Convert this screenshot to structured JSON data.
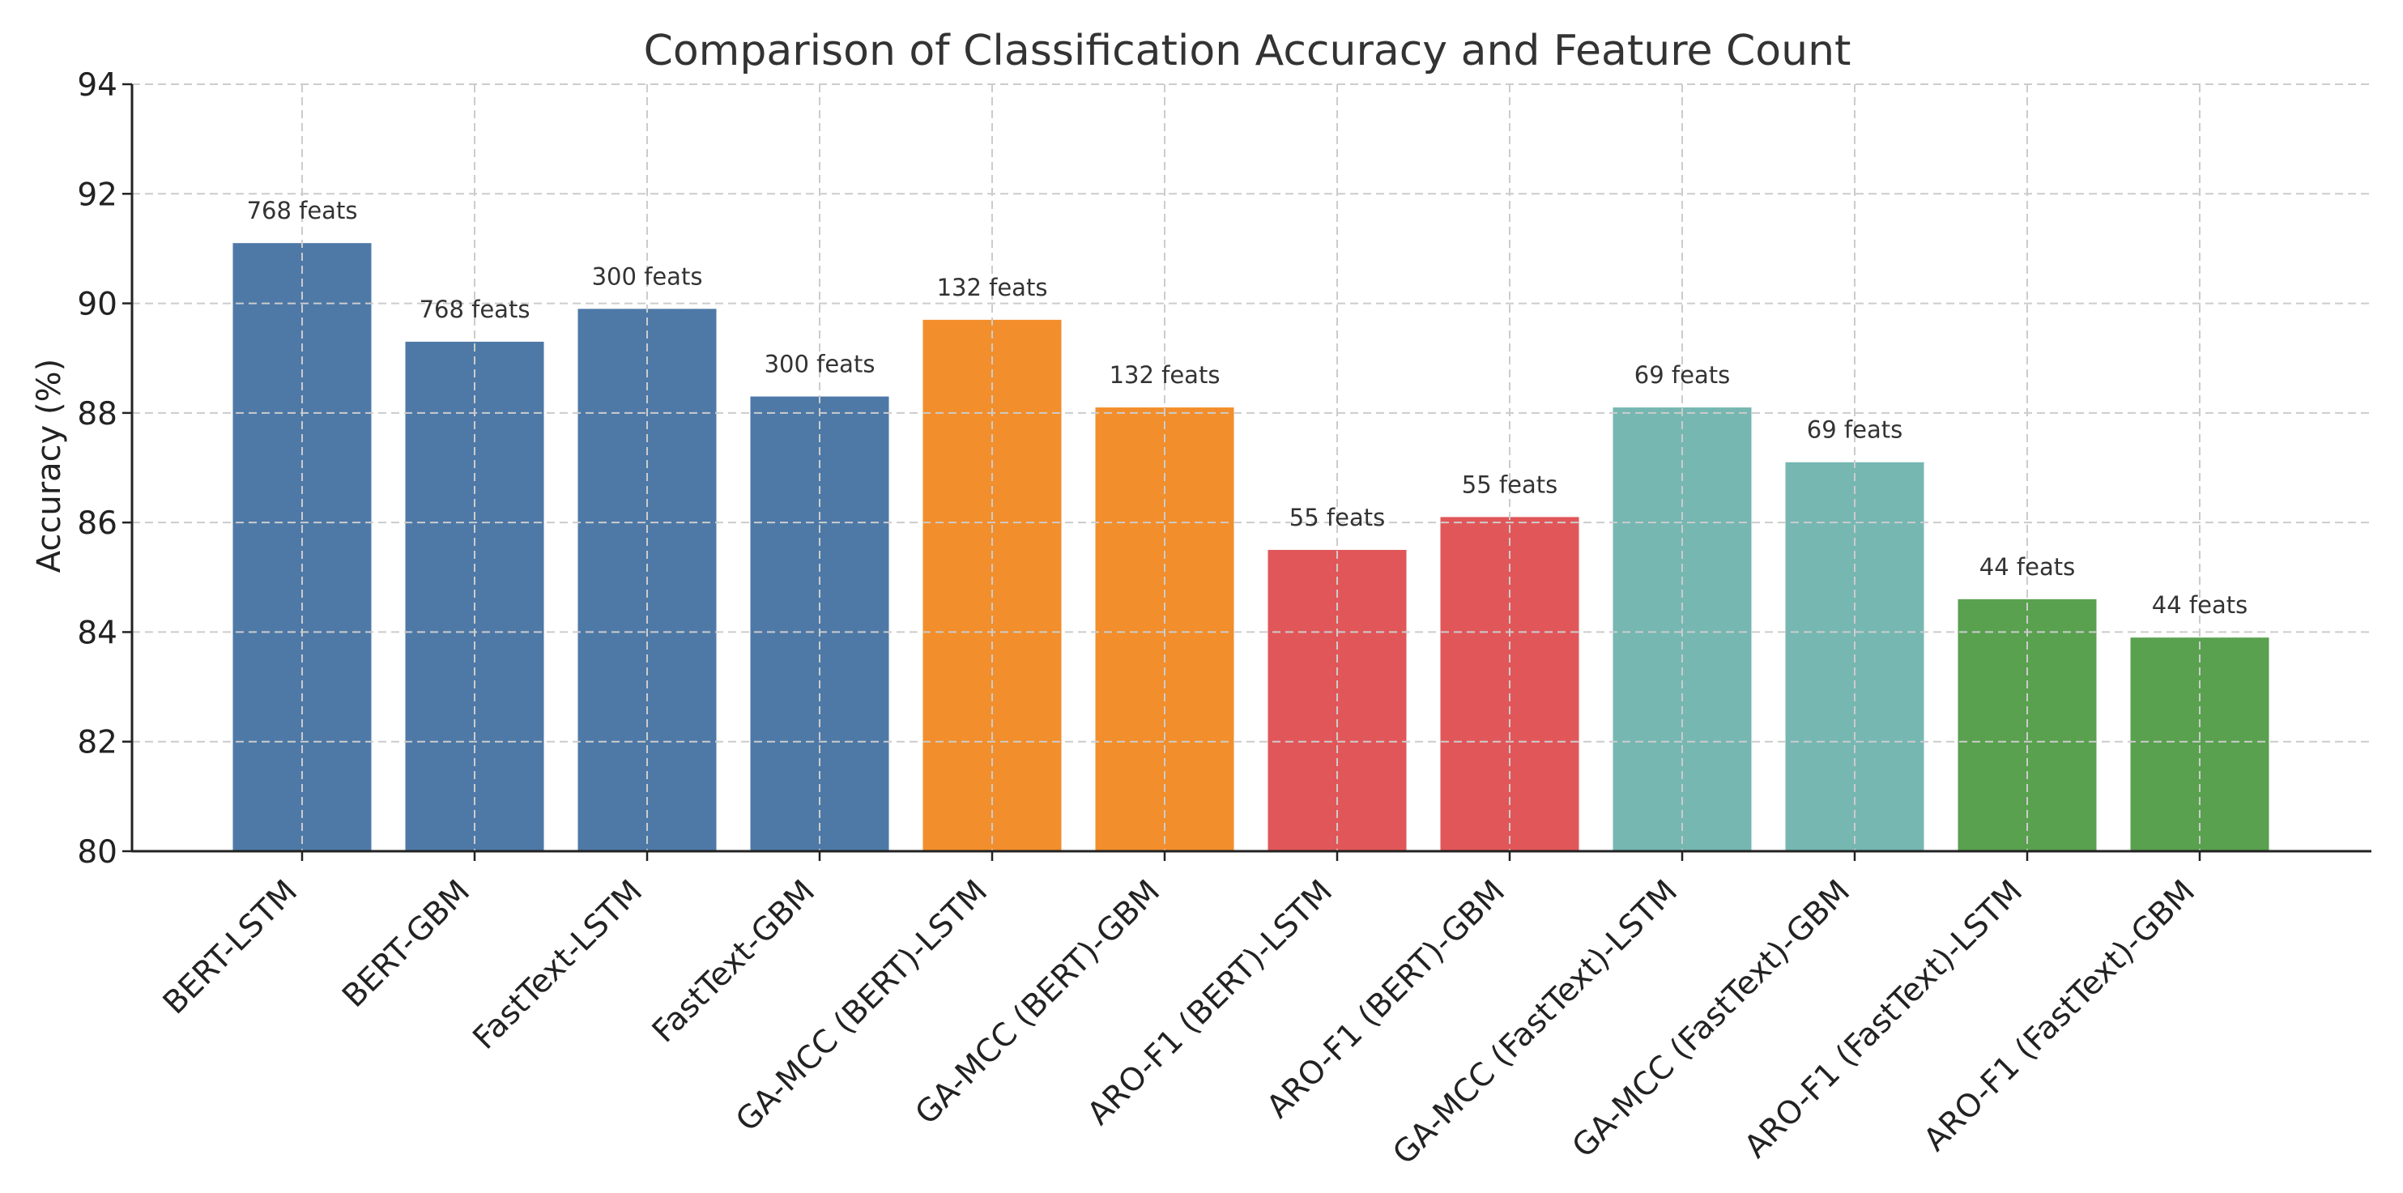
{
  "chart_data": {
    "type": "bar",
    "title": "Comparison of Classification Accuracy and Feature Count",
    "xlabel": "",
    "ylabel": "Accuracy (%)",
    "ylim": [
      80,
      94
    ],
    "yticks": [
      80,
      82,
      84,
      86,
      88,
      90,
      92,
      94
    ],
    "grid": true,
    "categories": [
      "BERT-LSTM",
      "BERT-GBM",
      "FastText-LSTM",
      "FastText-GBM",
      "GA-MCC (BERT)-LSTM",
      "GA-MCC (BERT)-GBM",
      "ARO-F1 (BERT)-LSTM",
      "ARO-F1 (BERT)-GBM",
      "GA-MCC (FastText)-LSTM",
      "GA-MCC (FastText)-GBM",
      "ARO-F1 (FastText)-LSTM",
      "ARO-F1 (FastText)-GBM"
    ],
    "values": [
      91.1,
      89.3,
      89.9,
      88.3,
      89.7,
      88.1,
      85.5,
      86.1,
      88.1,
      87.1,
      84.6,
      83.9
    ],
    "data_labels": [
      "768 feats",
      "768 feats",
      "300 feats",
      "300 feats",
      "132 feats",
      "132 feats",
      "55 feats",
      "55 feats",
      "69 feats",
      "69 feats",
      "44 feats",
      "44 feats"
    ],
    "colors": [
      "#4e79a7",
      "#4e79a7",
      "#4e79a7",
      "#4e79a7",
      "#f28e2b",
      "#f28e2b",
      "#e15759",
      "#e15759",
      "#76b7b2",
      "#76b7b2",
      "#59a14f",
      "#59a14f"
    ]
  }
}
